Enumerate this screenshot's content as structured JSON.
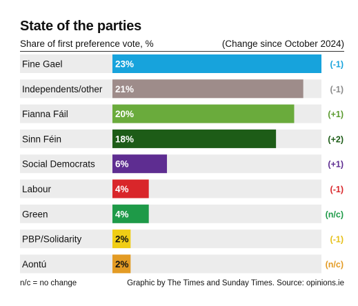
{
  "header": {
    "title": "State of the parties",
    "subtitle": "Share of first preference vote, %",
    "change_header": "(Change since October 2024)"
  },
  "footer": {
    "note": "n/c = no change",
    "credit": "Graphic by The Times and Sunday Times. Source: opinions.ie"
  },
  "chart_data": {
    "type": "bar",
    "orientation": "horizontal",
    "title": "State of the parties",
    "subtitle": "Share of first preference vote, %",
    "categories": [
      "Fine Gael",
      "Independents/other",
      "Fianna Fáil",
      "Sinn Féin",
      "Social Democrats",
      "Labour",
      "Green",
      "PBP/Solidarity",
      "Aontú"
    ],
    "values": [
      23,
      21,
      20,
      18,
      6,
      4,
      4,
      2,
      2
    ],
    "value_labels": [
      "23%",
      "21%",
      "20%",
      "18%",
      "6%",
      "4%",
      "4%",
      "2%",
      "2%"
    ],
    "changes": [
      "(-1)",
      "(-1)",
      "(+1)",
      "(+2)",
      "(+1)",
      "(-1)",
      "(n/c)",
      "(-1)",
      "(n/c)"
    ],
    "colors": [
      "#17a3dc",
      "#9e8c8a",
      "#6aab3c",
      "#1d5c17",
      "#5e2d91",
      "#d9262a",
      "#1e9a48",
      "#f0cd15",
      "#e39b24"
    ],
    "change_colors": [
      "#17a3dc",
      "#8a8a8a",
      "#5a9a2e",
      "#1d5c17",
      "#5e2d91",
      "#d9262a",
      "#1e9a48",
      "#e6c018",
      "#e39b24"
    ],
    "xlim": [
      0,
      23
    ],
    "grid": false,
    "legend": "none"
  }
}
